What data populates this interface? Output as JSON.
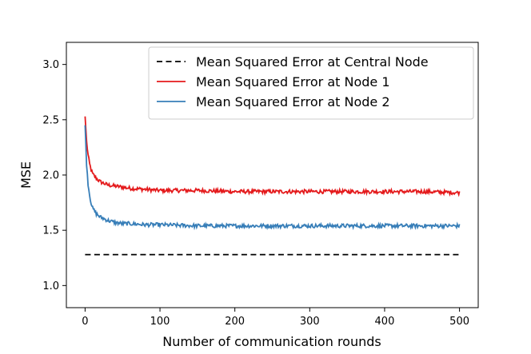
{
  "chart_data": {
    "type": "line",
    "title": "",
    "xlabel": "Number of communication rounds",
    "ylabel": "MSE",
    "xlim": [
      -25,
      525
    ],
    "ylim": [
      0.8,
      3.2
    ],
    "xticks": [
      0,
      100,
      200,
      300,
      400,
      500
    ],
    "xtick_labels": [
      "0",
      "100",
      "200",
      "300",
      "400",
      "500"
    ],
    "yticks": [
      1.0,
      1.5,
      2.0,
      2.5,
      3.0
    ],
    "ytick_labels": [
      "1.0",
      "1.5",
      "2.0",
      "2.5",
      "3.0"
    ],
    "grid": false,
    "legend_position": "top-right",
    "series": [
      {
        "name": "Mean Squared Error at Central Node",
        "color": "#000000",
        "style": "dashed",
        "x": [
          0,
          500
        ],
        "y": [
          1.28,
          1.28
        ]
      },
      {
        "name": "Mean Squared Error at Node 1",
        "color": "#e41a1c",
        "style": "solid",
        "x": [
          0,
          2,
          4,
          6,
          8,
          10,
          15,
          20,
          30,
          40,
          50,
          60,
          80,
          100,
          150,
          200,
          250,
          300,
          350,
          400,
          450,
          500
        ],
        "y": [
          2.53,
          2.3,
          2.18,
          2.1,
          2.05,
          2.01,
          1.97,
          1.94,
          1.91,
          1.9,
          1.89,
          1.88,
          1.87,
          1.86,
          1.86,
          1.85,
          1.85,
          1.85,
          1.85,
          1.85,
          1.85,
          1.84
        ]
      },
      {
        "name": "Mean Squared Error at Node 2",
        "color": "#377eb8",
        "style": "solid",
        "x": [
          0,
          2,
          4,
          6,
          8,
          10,
          15,
          20,
          30,
          40,
          50,
          60,
          80,
          100,
          150,
          200,
          250,
          300,
          350,
          400,
          450,
          500
        ],
        "y": [
          2.45,
          2.1,
          1.92,
          1.82,
          1.75,
          1.7,
          1.65,
          1.62,
          1.59,
          1.57,
          1.56,
          1.56,
          1.55,
          1.55,
          1.54,
          1.54,
          1.54,
          1.54,
          1.54,
          1.54,
          1.54,
          1.54
        ]
      }
    ]
  }
}
